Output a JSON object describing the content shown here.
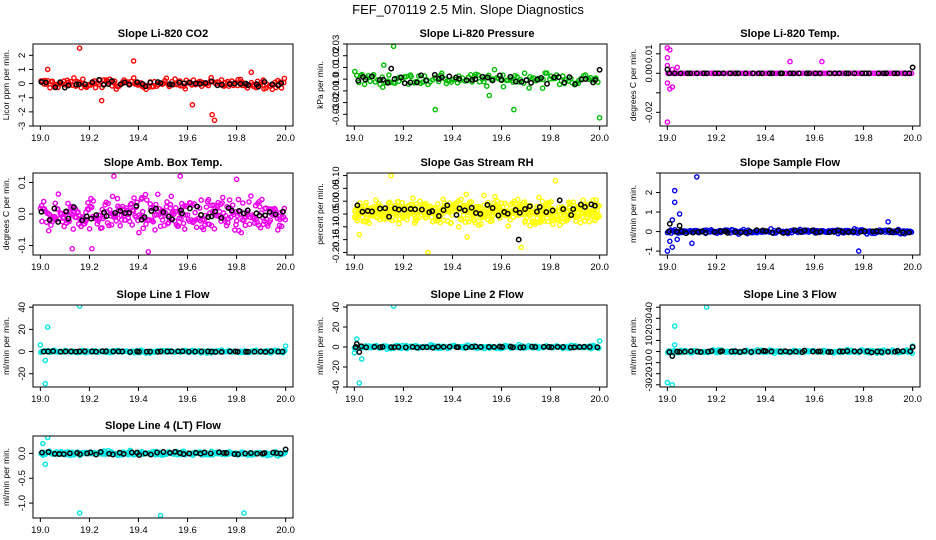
{
  "page_title": "FEF_070119  2.5 Min. Slope Diagnostics",
  "chart_data": [
    {
      "id": "co2",
      "type": "scatter",
      "title": "Slope Li-820 CO2",
      "ylabel": "Licor ppm per min.",
      "color": "#ff0000",
      "xlim": [
        18.97,
        20.03
      ],
      "ylim": [
        -3,
        2.8
      ],
      "yticks": [
        -3,
        -2,
        -1,
        0,
        1,
        2
      ],
      "ytick_labels": [
        "-3",
        "-2",
        "-1",
        "0",
        "1",
        "2"
      ],
      "xticks": [
        19.0,
        19.2,
        19.4,
        19.6,
        19.8,
        20.0
      ],
      "xtick_labels": [
        "19.0",
        "19.2",
        "19.4",
        "19.6",
        "19.8",
        "20.0"
      ],
      "series": [
        {
          "name": "slope",
          "spread": 0.35,
          "n": 170,
          "outliers": [
            [
              19.16,
              2.5
            ],
            [
              19.38,
              1.6
            ],
            [
              19.62,
              -1.5
            ],
            [
              19.7,
              -2.2
            ],
            [
              19.71,
              -2.6
            ],
            [
              19.25,
              -1.2
            ],
            [
              19.03,
              1.0
            ],
            [
              19.86,
              0.8
            ]
          ]
        },
        {
          "name": "2.5 min",
          "color": "#000000",
          "spread": 0.25,
          "n": 45,
          "outliers": []
        }
      ]
    },
    {
      "id": "pressure",
      "type": "scatter",
      "title": "Slope Li-820 Pressure",
      "ylabel": "kPa per min.",
      "color": "#00bb00",
      "xlim": [
        18.97,
        20.03
      ],
      "ylim": [
        -0.04,
        0.03
      ],
      "yticks": [
        -0.03,
        -0.02,
        -0.01,
        0.0,
        0.01,
        0.02,
        0.03
      ],
      "ytick_labels": [
        "-0.03",
        "-0.02",
        "-0.01",
        "0.0",
        "0.01",
        "0.02",
        "0.03"
      ],
      "xticks": [
        19.0,
        19.2,
        19.4,
        19.6,
        19.8,
        20.0
      ],
      "xtick_labels": [
        "19.0",
        "19.2",
        "19.4",
        "19.6",
        "19.8",
        "20.0"
      ],
      "series": [
        {
          "name": "slope",
          "spread": 0.006,
          "n": 130,
          "outliers": [
            [
              19.16,
              0.028
            ],
            [
              19.33,
              -0.026
            ],
            [
              19.65,
              -0.026
            ],
            [
              20.0,
              -0.033
            ],
            [
              19.12,
              0.012
            ],
            [
              19.55,
              -0.014
            ]
          ]
        },
        {
          "name": "2.5 min",
          "color": "#000000",
          "spread": 0.004,
          "n": 45,
          "outliers": [
            [
              19.15,
              0.009
            ],
            [
              20.0,
              0.008
            ]
          ]
        }
      ]
    },
    {
      "id": "temp",
      "type": "scatter",
      "title": "Slope Li-820 Temp.",
      "ylabel": "degrees C per min.",
      "color": "#ee00ee",
      "xlim": [
        18.97,
        20.03
      ],
      "ylim": [
        -0.027,
        0.015
      ],
      "yticks": [
        -0.02,
        -0.01,
        0.0,
        0.01
      ],
      "ytick_labels": [
        "-0.02",
        "",
        "0.00",
        "0.01"
      ],
      "xticks": [
        19.0,
        19.2,
        19.4,
        19.6,
        19.8,
        20.0
      ],
      "xtick_labels": [
        "19.0",
        "19.2",
        "19.4",
        "19.6",
        "19.8",
        "20.0"
      ],
      "series": [
        {
          "name": "slope",
          "spread": 0.0,
          "n": 120,
          "outliers": [
            [
              19.0,
              0.013
            ],
            [
              19.0,
              0.008
            ],
            [
              19.0,
              0.004
            ],
            [
              19.01,
              0.012
            ],
            [
              19.0,
              -0.005
            ],
            [
              19.01,
              -0.008
            ],
            [
              19.0,
              -0.025
            ],
            [
              19.02,
              0.002
            ],
            [
              19.02,
              -0.007
            ],
            [
              19.5,
              0.006
            ],
            [
              19.63,
              0.006
            ],
            [
              19.04,
              0.003
            ]
          ]
        },
        {
          "name": "2.5 min",
          "color": "#000000",
          "spread": 0.0,
          "n": 45,
          "outliers": [
            [
              19.0,
              0.002
            ],
            [
              20.0,
              0.003
            ]
          ]
        }
      ]
    },
    {
      "id": "amb",
      "type": "scatter",
      "title": "Slope Amb. Box Temp.",
      "ylabel": "degrees C per min.",
      "color": "#ee00ee",
      "xlim": [
        18.97,
        20.03
      ],
      "ylim": [
        -0.13,
        0.13
      ],
      "yticks": [
        -0.1,
        0.0,
        0.1
      ],
      "ytick_labels": [
        "-0.1",
        "0.0",
        "0.1"
      ],
      "xticks": [
        19.0,
        19.2,
        19.4,
        19.6,
        19.8,
        20.0
      ],
      "xtick_labels": [
        "19.0",
        "19.2",
        "19.4",
        "19.6",
        "19.8",
        "20.0"
      ],
      "series": [
        {
          "name": "slope",
          "spread": 0.05,
          "n": 330,
          "outliers": [
            [
              19.3,
              0.12
            ],
            [
              19.57,
              0.12
            ],
            [
              19.8,
              0.11
            ],
            [
              19.44,
              -0.12
            ],
            [
              19.13,
              -0.11
            ],
            [
              19.21,
              -0.11
            ]
          ]
        },
        {
          "name": "2.5 min",
          "color": "#000000",
          "spread": 0.03,
          "n": 45,
          "outliers": []
        }
      ]
    },
    {
      "id": "rh",
      "type": "scatter",
      "title": "Slope Gas Stream RH",
      "ylabel": "percent per min.",
      "color": "#ffff00",
      "xlim": [
        18.97,
        20.03
      ],
      "ylim": [
        -0.21,
        0.11
      ],
      "yticks": [
        -0.2,
        -0.15,
        -0.1,
        -0.05,
        0.0,
        0.05,
        0.1
      ],
      "ytick_labels": [
        "-0.20",
        "-0.15",
        "-0.10",
        "-0.05",
        "0.00",
        "0.05",
        "0.10"
      ],
      "xticks": [
        19.0,
        19.2,
        19.4,
        19.6,
        19.8,
        20.0
      ],
      "xtick_labels": [
        "19.0",
        "19.2",
        "19.4",
        "19.6",
        "19.8",
        "20.0"
      ],
      "series": [
        {
          "name": "slope",
          "spread": 0.045,
          "n": 520,
          "center": -0.04,
          "outliers": [
            [
              19.15,
              0.1
            ],
            [
              19.3,
              -0.2
            ],
            [
              19.68,
              -0.18
            ],
            [
              19.82,
              0.08
            ],
            [
              19.02,
              -0.13
            ],
            [
              19.46,
              -0.14
            ]
          ]
        },
        {
          "name": "2.5 min",
          "color": "#000000",
          "spread": 0.035,
          "n": 45,
          "center": -0.04,
          "outliers": [
            [
              19.67,
              -0.15
            ]
          ]
        }
      ]
    },
    {
      "id": "sample",
      "type": "scatter",
      "title": "Slope Sample Flow",
      "ylabel": "ml/min per min.",
      "color": "#0000ee",
      "xlim": [
        18.97,
        20.03
      ],
      "ylim": [
        -1.2,
        3.0
      ],
      "yticks": [
        -1,
        0,
        1,
        2,
        3
      ],
      "ytick_labels": [
        "-1",
        "0",
        "1",
        "2",
        ""
      ],
      "xticks": [
        19.0,
        19.2,
        19.4,
        19.6,
        19.8,
        20.0
      ],
      "xtick_labels": [
        "19.0",
        "19.2",
        "19.4",
        "19.6",
        "19.8",
        "20.0"
      ],
      "series": [
        {
          "name": "slope",
          "spread": 0.1,
          "n": 200,
          "outliers": [
            [
              19.03,
              2.1
            ],
            [
              19.03,
              1.5
            ],
            [
              19.12,
              2.8
            ],
            [
              19.0,
              -1.0
            ],
            [
              19.02,
              -0.8
            ],
            [
              19.05,
              0.9
            ],
            [
              19.1,
              -0.6
            ],
            [
              19.9,
              0.5
            ],
            [
              19.78,
              -1.0
            ],
            [
              19.02,
              0.6
            ],
            [
              19.01,
              -0.5
            ],
            [
              19.04,
              -0.4
            ]
          ]
        },
        {
          "name": "2.5 min",
          "color": "#000000",
          "spread": 0.08,
          "n": 45,
          "outliers": [
            [
              19.01,
              0.4
            ],
            [
              19.05,
              0.3
            ]
          ]
        }
      ]
    },
    {
      "id": "line1",
      "type": "scatter",
      "title": "Slope Line 1 Flow",
      "ylabel": "ml/min per min.",
      "color": "#00e5e5",
      "xlim": [
        18.97,
        20.03
      ],
      "ylim": [
        -32,
        42
      ],
      "yticks": [
        -20,
        0,
        20,
        40
      ],
      "ytick_labels": [
        "-20",
        "0",
        "20",
        "40"
      ],
      "xticks": [
        19.0,
        19.2,
        19.4,
        19.6,
        19.8,
        20.0
      ],
      "xtick_labels": [
        "19.0",
        "19.2",
        "19.4",
        "19.6",
        "19.8",
        "20.0"
      ],
      "series": [
        {
          "name": "slope",
          "spread": 1.2,
          "n": 220,
          "outliers": [
            [
              19.16,
              41
            ],
            [
              19.03,
              22
            ],
            [
              19.02,
              -29
            ],
            [
              19.0,
              6
            ],
            [
              19.02,
              -8
            ],
            [
              20.0,
              5
            ]
          ]
        },
        {
          "name": "2.5 min",
          "color": "#000000",
          "spread": 0.4,
          "n": 45,
          "outliers": []
        }
      ]
    },
    {
      "id": "line2",
      "type": "scatter",
      "title": "Slope Line 2 Flow",
      "ylabel": "ml/min per min.",
      "color": "#00e5e5",
      "xlim": [
        18.97,
        20.03
      ],
      "ylim": [
        -40,
        42
      ],
      "yticks": [
        -40,
        -20,
        0,
        20,
        40
      ],
      "ytick_labels": [
        "-40",
        "-20",
        "0",
        "20",
        "40"
      ],
      "xticks": [
        19.0,
        19.2,
        19.4,
        19.6,
        19.8,
        20.0
      ],
      "xtick_labels": [
        "19.0",
        "19.2",
        "19.4",
        "19.6",
        "19.8",
        "20.0"
      ],
      "series": [
        {
          "name": "slope",
          "spread": 1.6,
          "n": 220,
          "outliers": [
            [
              19.16,
              41
            ],
            [
              19.02,
              -36
            ],
            [
              19.01,
              8
            ],
            [
              19.03,
              -12
            ],
            [
              19.0,
              -6
            ],
            [
              20.0,
              6
            ]
          ]
        },
        {
          "name": "2.5 min",
          "color": "#000000",
          "spread": 0.6,
          "n": 45,
          "outliers": [
            [
              19.02,
              -5
            ],
            [
              19.01,
              3
            ]
          ]
        }
      ]
    },
    {
      "id": "line3",
      "type": "scatter",
      "title": "Slope Line 3 Flow",
      "ylabel": "ml/min per min.",
      "color": "#00e5e5",
      "xlim": [
        18.97,
        20.03
      ],
      "ylim": [
        -32,
        42
      ],
      "yticks": [
        -30,
        -20,
        -10,
        0,
        10,
        20,
        30,
        40
      ],
      "ytick_labels": [
        "-30",
        "-20",
        "-10",
        "0",
        "10",
        "20",
        "30",
        "40"
      ],
      "xticks": [
        19.0,
        19.2,
        19.4,
        19.6,
        19.8,
        20.0
      ],
      "xtick_labels": [
        "19.0",
        "19.2",
        "19.4",
        "19.6",
        "19.8",
        "20.0"
      ],
      "series": [
        {
          "name": "slope",
          "spread": 1.4,
          "n": 220,
          "outliers": [
            [
              19.16,
              40
            ],
            [
              19.03,
              23
            ],
            [
              19.02,
              -30
            ],
            [
              19.0,
              -28
            ],
            [
              19.03,
              6
            ],
            [
              20.0,
              5
            ]
          ]
        },
        {
          "name": "2.5 min",
          "color": "#000000",
          "spread": 0.7,
          "n": 45,
          "outliers": [
            [
              19.02,
              -4
            ],
            [
              20.0,
              4
            ]
          ]
        }
      ]
    },
    {
      "id": "line4",
      "type": "scatter",
      "title": "Slope Line 4 (LT) Flow",
      "ylabel": "ml/min per min.",
      "color": "#00e5e5",
      "xlim": [
        18.97,
        20.03
      ],
      "ylim": [
        -1.3,
        0.35
      ],
      "yticks": [
        -1.0,
        -0.5,
        0.0
      ],
      "ytick_labels": [
        "-1.0",
        "-0.5",
        "0.0"
      ],
      "xticks": [
        19.0,
        19.2,
        19.4,
        19.6,
        19.8,
        20.0
      ],
      "xtick_labels": [
        "19.0",
        "19.2",
        "19.4",
        "19.6",
        "19.8",
        "20.0"
      ],
      "series": [
        {
          "name": "slope",
          "spread": 0.04,
          "n": 230,
          "outliers": [
            [
              19.03,
              0.32
            ],
            [
              19.02,
              -0.22
            ],
            [
              19.16,
              -1.2
            ],
            [
              19.49,
              -1.25
            ],
            [
              19.83,
              -1.2
            ],
            [
              19.01,
              0.2
            ]
          ]
        },
        {
          "name": "2.5 min",
          "color": "#000000",
          "spread": 0.03,
          "n": 45,
          "outliers": [
            [
              20.0,
              0.08
            ]
          ]
        }
      ]
    }
  ]
}
